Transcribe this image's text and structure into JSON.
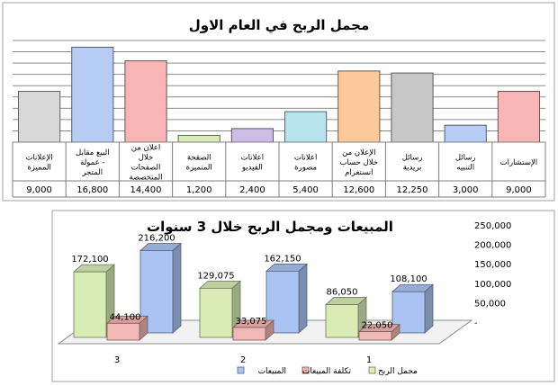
{
  "chart_data": [
    {
      "type": "bar",
      "title": "مجمل الربح في العام الاول",
      "categories": [
        "الإعلانات المميزة",
        "البيع مقابل عمولة - المتجر",
        "اعلان من خلال الصفحات المتخصصة",
        "الصفحة المتميزة",
        "اعلانات الفيديو",
        "اعلانات مصورة",
        "الإعلان من خلال حساب انستغرام",
        "رسائل بريدية",
        "رسائل التنبيه",
        "الإستشارات"
      ],
      "values": [
        9000,
        16800,
        14400,
        1200,
        2400,
        5400,
        12600,
        12250,
        3000,
        9000
      ],
      "value_labels": [
        "9,000",
        "16,800",
        "14,400",
        "1,200",
        "2,400",
        "5,400",
        "12,600",
        "12,250",
        "3,000",
        "9,000"
      ],
      "colors": [
        "#d8d8d8",
        "#b8cdf5",
        "#f7b5b3",
        "#d9ecb6",
        "#cdbde6",
        "#b6e3ee",
        "#fcc99a",
        "#c8c8c8",
        "#b8cdf5",
        "#f7b5b3"
      ],
      "ylim": [
        0,
        18000
      ],
      "grid": true,
      "legend": "none"
    },
    {
      "type": "bar",
      "subtype": "3d-clustered",
      "title": "المبيعات ومجمل الربح خلال 3 سنوات",
      "categories": [
        "3",
        "2",
        "1"
      ],
      "series": [
        {
          "name": "مجمل الربح",
          "values": [
            172100,
            129075,
            86050
          ],
          "labels": [
            "172,100",
            "129,075",
            "86,050"
          ],
          "color": "#d9ecb6"
        },
        {
          "name": "تكلفة المبيعات",
          "values": [
            44100,
            33075,
            22050
          ],
          "labels": [
            "44,100",
            "33,075",
            "22,050"
          ],
          "color": "#f2b8b6"
        },
        {
          "name": "المبيعات",
          "values": [
            216200,
            162150,
            108100
          ],
          "labels": [
            "216,200",
            "162,150",
            "108,100"
          ],
          "color": "#a9c4f2"
        }
      ],
      "ylim": [
        0,
        250000
      ],
      "yticks": [
        "250,000",
        "200,000",
        "150,000",
        "100,000",
        "50,000",
        "-"
      ],
      "legend": "bottom"
    }
  ]
}
